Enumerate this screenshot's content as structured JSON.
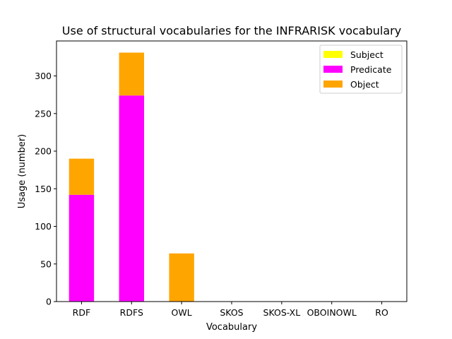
{
  "chart_data": {
    "type": "bar",
    "stacked": true,
    "title": "Use of structural vocabularies for the INFRARISK vocabulary",
    "xlabel": "Vocabulary",
    "ylabel": "Usage (number)",
    "categories": [
      "RDF",
      "RDFS",
      "OWL",
      "SKOS",
      "SKOS-XL",
      "OBOINOWL",
      "RO"
    ],
    "series": [
      {
        "name": "Subject",
        "color": "#ffff00",
        "values": [
          0,
          0,
          0,
          0,
          0,
          0,
          0
        ]
      },
      {
        "name": "Predicate",
        "color": "#ff00ff",
        "values": [
          142,
          274,
          0,
          0,
          0,
          0,
          0
        ]
      },
      {
        "name": "Object",
        "color": "#ffa500",
        "values": [
          48,
          57,
          64,
          0,
          0,
          0,
          0
        ]
      }
    ],
    "ylim": [
      0,
      346.5
    ],
    "yticks": [
      0,
      50,
      100,
      150,
      200,
      250,
      300
    ],
    "grid": false,
    "legend": "top-right"
  }
}
